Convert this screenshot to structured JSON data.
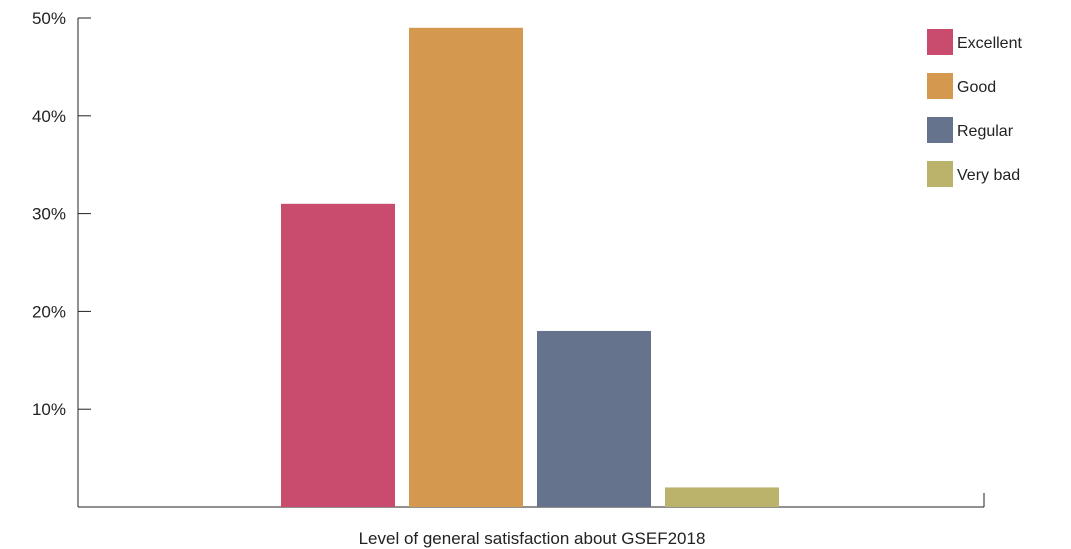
{
  "chart_data": {
    "type": "bar",
    "categories": [
      "Excellent",
      "Good",
      "Regular",
      "Very bad"
    ],
    "values": [
      31,
      49,
      18,
      2
    ],
    "colors": [
      "#c94c6e",
      "#d4984e",
      "#66738d",
      "#bbb36b"
    ],
    "xlabel": "Level of general satisfaction about GSEF2018",
    "ylabel": "",
    "ylim": [
      0,
      50
    ],
    "yticks": [
      10,
      20,
      30,
      40,
      50
    ],
    "ytick_labels": [
      "10%",
      "20%",
      "30%",
      "40%",
      "50%"
    ],
    "legend": {
      "position": "top-right",
      "entries": [
        "Excellent",
        "Good",
        "Regular",
        "Very bad"
      ]
    },
    "grid": false
  }
}
